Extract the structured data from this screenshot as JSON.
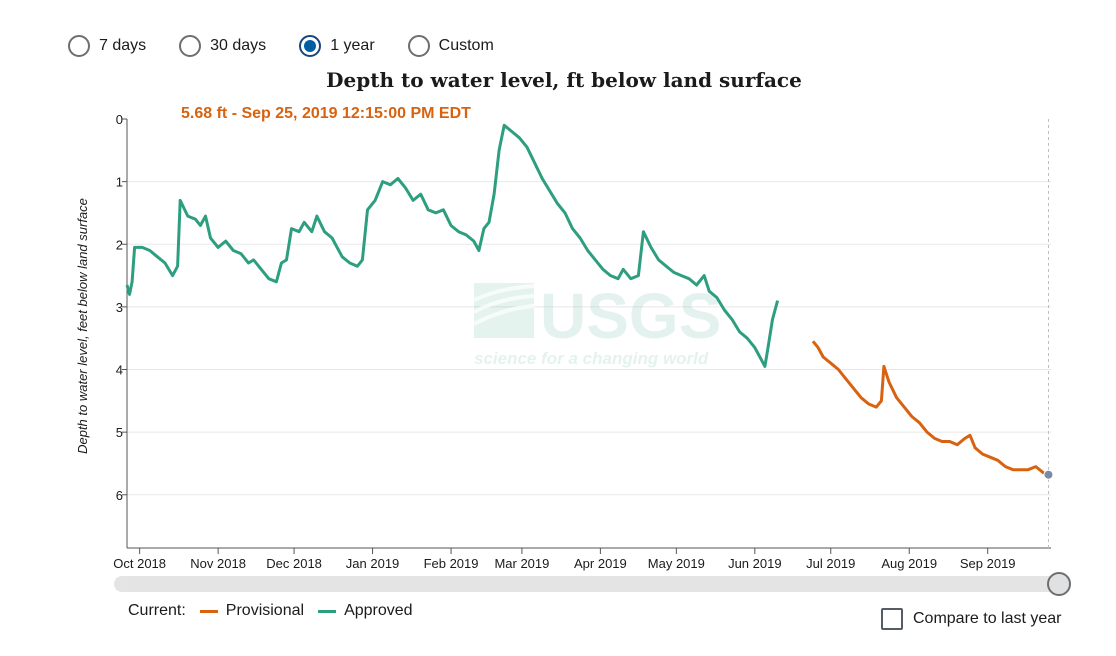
{
  "controls": {
    "ranges": [
      {
        "label": "7 days",
        "selected": false
      },
      {
        "label": "30 days",
        "selected": false
      },
      {
        "label": "1 year",
        "selected": true
      },
      {
        "label": "Custom",
        "selected": false
      }
    ]
  },
  "tooltip_text": "5.68 ft - Sep 25, 2019 12:15:00 PM EDT",
  "legend": {
    "title": "Current:",
    "provisional": "Provisional",
    "approved": "Approved"
  },
  "compare_label": "Compare to last year",
  "watermark": {
    "logo_text": "USGS",
    "tagline": "science for a changing world"
  },
  "colors": {
    "approved": "#2d9e7f",
    "provisional": "#d8620f",
    "tooltip": "#d8620f",
    "cursor_point": "#7a8aa8"
  },
  "chart_data": {
    "type": "line",
    "title": "Depth to water level, ft below land surface",
    "ylabel": "Depth to water level, feet below land surface",
    "xlabel": "",
    "y_inverted": true,
    "ylim": [
      0,
      6.85
    ],
    "yticks": [
      0,
      1,
      2,
      3,
      4,
      5,
      6
    ],
    "xlim": [
      "2018-09-26",
      "2019-09-26"
    ],
    "xticks": [
      {
        "date": "2018-10-01",
        "label": "Oct 2018"
      },
      {
        "date": "2018-11-01",
        "label": "Nov 2018"
      },
      {
        "date": "2018-12-01",
        "label": "Dec 2018"
      },
      {
        "date": "2019-01-01",
        "label": "Jan 2019"
      },
      {
        "date": "2019-02-01",
        "label": "Feb 2019"
      },
      {
        "date": "2019-03-01",
        "label": "Mar 2019"
      },
      {
        "date": "2019-04-01",
        "label": "Apr 2019"
      },
      {
        "date": "2019-05-01",
        "label": "May 2019"
      },
      {
        "date": "2019-06-01",
        "label": "Jun 2019"
      },
      {
        "date": "2019-07-01",
        "label": "Jul 2019"
      },
      {
        "date": "2019-08-01",
        "label": "Aug 2019"
      },
      {
        "date": "2019-09-01",
        "label": "Sep 2019"
      }
    ],
    "grid": "horizontal",
    "series": [
      {
        "name": "Approved",
        "points": [
          [
            "2018-09-26",
            2.65
          ],
          [
            "2018-09-27",
            2.8
          ],
          [
            "2018-09-28",
            2.6
          ],
          [
            "2018-09-29",
            2.05
          ],
          [
            "2018-10-02",
            2.05
          ],
          [
            "2018-10-05",
            2.1
          ],
          [
            "2018-10-08",
            2.2
          ],
          [
            "2018-10-11",
            2.3
          ],
          [
            "2018-10-14",
            2.5
          ],
          [
            "2018-10-16",
            2.35
          ],
          [
            "2018-10-17",
            1.3
          ],
          [
            "2018-10-20",
            1.55
          ],
          [
            "2018-10-23",
            1.6
          ],
          [
            "2018-10-25",
            1.7
          ],
          [
            "2018-10-27",
            1.55
          ],
          [
            "2018-10-29",
            1.9
          ],
          [
            "2018-11-01",
            2.05
          ],
          [
            "2018-11-04",
            1.95
          ],
          [
            "2018-11-07",
            2.1
          ],
          [
            "2018-11-10",
            2.15
          ],
          [
            "2018-11-13",
            2.3
          ],
          [
            "2018-11-15",
            2.25
          ],
          [
            "2018-11-18",
            2.4
          ],
          [
            "2018-11-21",
            2.55
          ],
          [
            "2018-11-24",
            2.6
          ],
          [
            "2018-11-26",
            2.3
          ],
          [
            "2018-11-28",
            2.25
          ],
          [
            "2018-11-30",
            1.75
          ],
          [
            "2018-12-03",
            1.8
          ],
          [
            "2018-12-05",
            1.65
          ],
          [
            "2018-12-08",
            1.8
          ],
          [
            "2018-12-10",
            1.55
          ],
          [
            "2018-12-13",
            1.8
          ],
          [
            "2018-12-16",
            1.9
          ],
          [
            "2018-12-18",
            2.05
          ],
          [
            "2018-12-20",
            2.2
          ],
          [
            "2018-12-23",
            2.3
          ],
          [
            "2018-12-26",
            2.35
          ],
          [
            "2018-12-28",
            2.25
          ],
          [
            "2018-12-30",
            1.45
          ],
          [
            "2019-01-02",
            1.3
          ],
          [
            "2019-01-05",
            1.0
          ],
          [
            "2019-01-08",
            1.05
          ],
          [
            "2019-01-11",
            0.95
          ],
          [
            "2019-01-14",
            1.1
          ],
          [
            "2019-01-17",
            1.3
          ],
          [
            "2019-01-20",
            1.2
          ],
          [
            "2019-01-23",
            1.45
          ],
          [
            "2019-01-26",
            1.5
          ],
          [
            "2019-01-29",
            1.45
          ],
          [
            "2019-02-01",
            1.7
          ],
          [
            "2019-02-04",
            1.8
          ],
          [
            "2019-02-07",
            1.85
          ],
          [
            "2019-02-10",
            1.95
          ],
          [
            "2019-02-12",
            2.1
          ],
          [
            "2019-02-14",
            1.75
          ],
          [
            "2019-02-16",
            1.65
          ],
          [
            "2019-02-18",
            1.2
          ],
          [
            "2019-02-20",
            0.5
          ],
          [
            "2019-02-22",
            0.1
          ],
          [
            "2019-02-25",
            0.2
          ],
          [
            "2019-02-28",
            0.3
          ],
          [
            "2019-03-03",
            0.45
          ],
          [
            "2019-03-06",
            0.7
          ],
          [
            "2019-03-09",
            0.95
          ],
          [
            "2019-03-12",
            1.15
          ],
          [
            "2019-03-15",
            1.35
          ],
          [
            "2019-03-18",
            1.5
          ],
          [
            "2019-03-21",
            1.75
          ],
          [
            "2019-03-24",
            1.9
          ],
          [
            "2019-03-27",
            2.1
          ],
          [
            "2019-03-30",
            2.25
          ],
          [
            "2019-04-02",
            2.4
          ],
          [
            "2019-04-05",
            2.5
          ],
          [
            "2019-04-08",
            2.55
          ],
          [
            "2019-04-10",
            2.4
          ],
          [
            "2019-04-13",
            2.55
          ],
          [
            "2019-04-16",
            2.5
          ],
          [
            "2019-04-18",
            1.8
          ],
          [
            "2019-04-21",
            2.05
          ],
          [
            "2019-04-24",
            2.25
          ],
          [
            "2019-04-27",
            2.35
          ],
          [
            "2019-04-30",
            2.45
          ],
          [
            "2019-05-03",
            2.5
          ],
          [
            "2019-05-06",
            2.55
          ],
          [
            "2019-05-09",
            2.65
          ],
          [
            "2019-05-12",
            2.5
          ],
          [
            "2019-05-14",
            2.75
          ],
          [
            "2019-05-17",
            2.85
          ],
          [
            "2019-05-20",
            3.05
          ],
          [
            "2019-05-23",
            3.2
          ],
          [
            "2019-05-26",
            3.4
          ],
          [
            "2019-05-29",
            3.5
          ],
          [
            "2019-06-01",
            3.65
          ],
          [
            "2019-06-03",
            3.8
          ],
          [
            "2019-06-05",
            3.95
          ],
          [
            "2019-06-06",
            3.7
          ],
          [
            "2019-06-08",
            3.2
          ],
          [
            "2019-06-10",
            2.9
          ]
        ]
      },
      {
        "name": "Provisional",
        "points": [
          [
            "2019-06-24",
            3.55
          ],
          [
            "2019-06-26",
            3.65
          ],
          [
            "2019-06-28",
            3.8
          ],
          [
            "2019-07-01",
            3.9
          ],
          [
            "2019-07-04",
            4.0
          ],
          [
            "2019-07-07",
            4.15
          ],
          [
            "2019-07-10",
            4.3
          ],
          [
            "2019-07-13",
            4.45
          ],
          [
            "2019-07-16",
            4.55
          ],
          [
            "2019-07-19",
            4.6
          ],
          [
            "2019-07-21",
            4.5
          ],
          [
            "2019-07-22",
            3.95
          ],
          [
            "2019-07-24",
            4.2
          ],
          [
            "2019-07-27",
            4.45
          ],
          [
            "2019-07-30",
            4.6
          ],
          [
            "2019-08-02",
            4.75
          ],
          [
            "2019-08-05",
            4.85
          ],
          [
            "2019-08-08",
            5.0
          ],
          [
            "2019-08-11",
            5.1
          ],
          [
            "2019-08-14",
            5.15
          ],
          [
            "2019-08-17",
            5.15
          ],
          [
            "2019-08-20",
            5.2
          ],
          [
            "2019-08-23",
            5.1
          ],
          [
            "2019-08-25",
            5.05
          ],
          [
            "2019-08-27",
            5.25
          ],
          [
            "2019-08-30",
            5.35
          ],
          [
            "2019-09-02",
            5.4
          ],
          [
            "2019-09-05",
            5.45
          ],
          [
            "2019-09-08",
            5.55
          ],
          [
            "2019-09-11",
            5.6
          ],
          [
            "2019-09-14",
            5.6
          ],
          [
            "2019-09-17",
            5.6
          ],
          [
            "2019-09-20",
            5.55
          ],
          [
            "2019-09-23",
            5.65
          ],
          [
            "2019-09-25",
            5.68
          ]
        ]
      }
    ],
    "cursor": {
      "date": "2019-09-25",
      "value": 5.68
    }
  }
}
